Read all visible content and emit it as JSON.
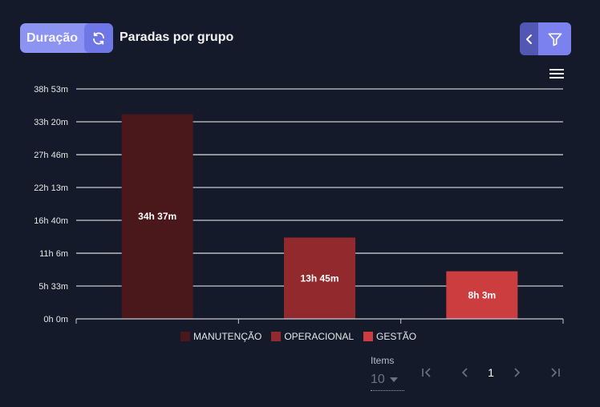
{
  "header": {
    "toggle_label": "Duração",
    "title": "Paradas por grupo"
  },
  "icons": {
    "refresh": "refresh-icon",
    "back": "chevron-left-icon",
    "filter": "filter-icon",
    "menu": "hamburger-menu-icon"
  },
  "colors": {
    "accent": "#8c93f0",
    "accent_dark": "#6f77e6",
    "manutencao": "#4a181a",
    "operacional": "#92292c",
    "gestao": "#cc3d3f"
  },
  "chart_data": {
    "type": "bar",
    "categories": [
      "MANUTENÇÃO",
      "OPERACIONAL",
      "GESTÃO"
    ],
    "values_minutes": [
      2077,
      825,
      483
    ],
    "data_labels": [
      "34h 37m",
      "13h 45m",
      "8h 3m"
    ],
    "yticks": [
      "0h 0m",
      "5h 33m",
      "11h 6m",
      "16h 40m",
      "22h 13m",
      "27h 46m",
      "33h 20m",
      "38h 53m"
    ],
    "ytick_minutes": [
      0,
      333,
      666,
      1000,
      1333,
      1666,
      2000,
      2333
    ],
    "ylim": [
      0,
      2333
    ],
    "legend": [
      "MANUTENÇÃO",
      "OPERACIONAL",
      "GESTÃO"
    ],
    "legend_position": "bottom-center",
    "grid": true
  },
  "pagination": {
    "items_label": "Items",
    "page_size": "10",
    "current_page": "1"
  }
}
